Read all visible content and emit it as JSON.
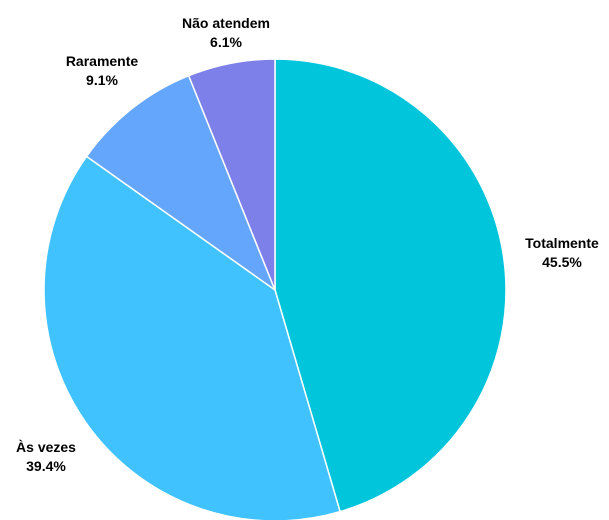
{
  "chart_data": {
    "type": "pie",
    "title": "",
    "slices": [
      {
        "label": "Totalmente",
        "percent_label": "45.5%",
        "value": 45.5,
        "color": "#00C5DB"
      },
      {
        "label": "Às vezes",
        "percent_label": "39.4%",
        "value": 39.4,
        "color": "#3FC2FD"
      },
      {
        "label": "Raramente",
        "percent_label": "9.1%",
        "value": 9.1,
        "color": "#64A6FB"
      },
      {
        "label": "Não atendem",
        "percent_label": "6.1%",
        "value": 6.1,
        "color": "#7D80E8"
      }
    ],
    "start_angle": "12 o'clock",
    "direction": "clockwise",
    "legend": "none"
  }
}
